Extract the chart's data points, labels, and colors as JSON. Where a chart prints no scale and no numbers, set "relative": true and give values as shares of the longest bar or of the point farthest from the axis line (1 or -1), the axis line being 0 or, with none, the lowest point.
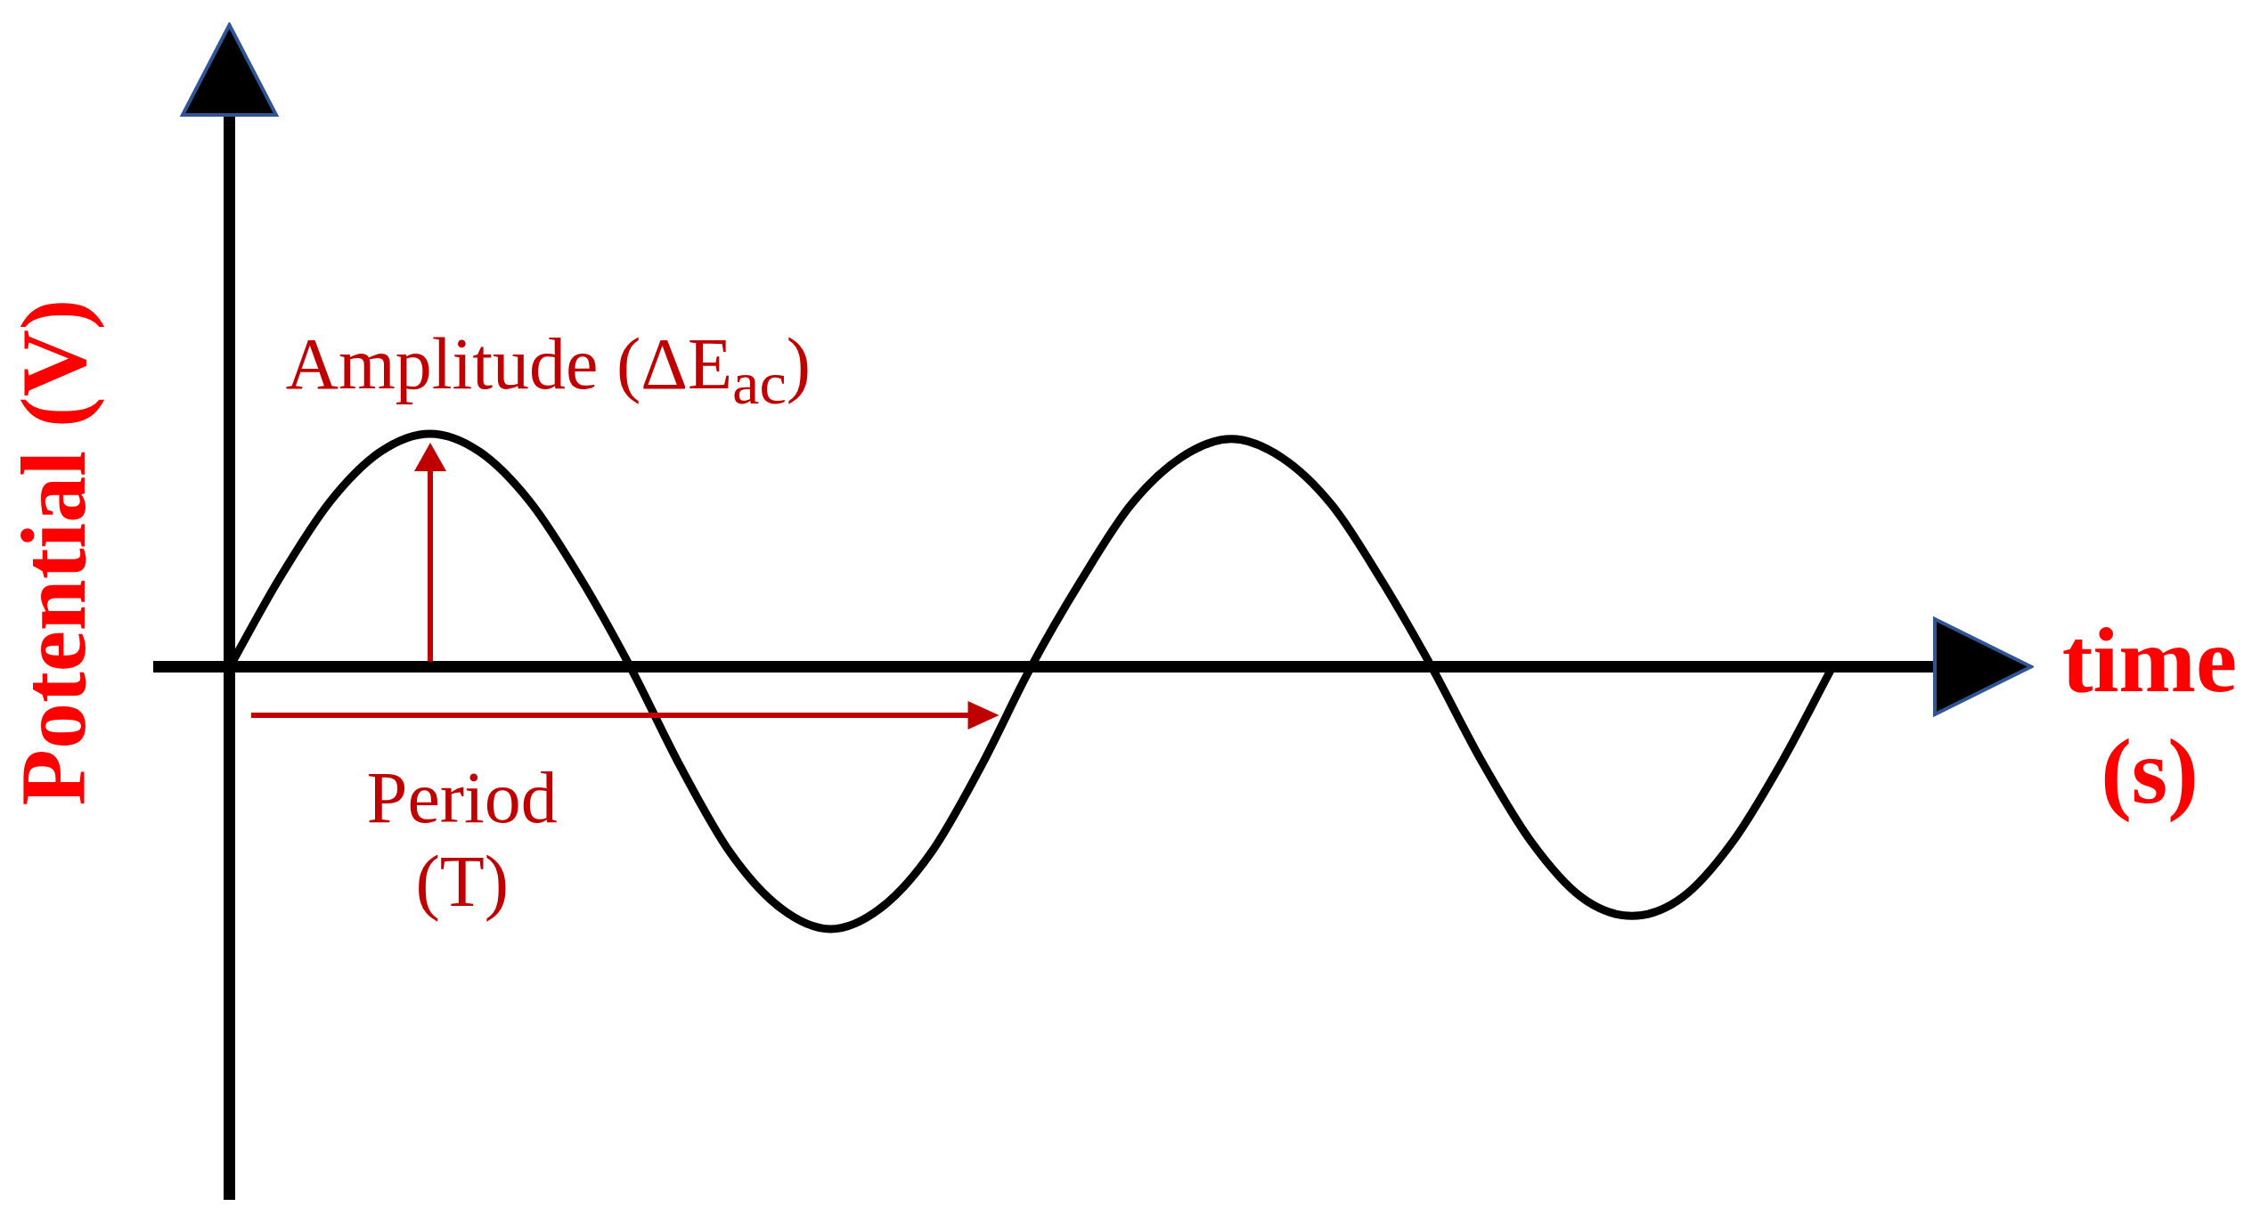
{
  "chart_data": {
    "type": "line",
    "xlabel": "time (s)",
    "ylabel": "Potential (V)",
    "annotations": [
      "Amplitude (ΔE$_{ac}$)",
      "Period (T)"
    ],
    "relative": true,
    "categories": [
      null,
      null,
      null,
      null,
      null,
      null,
      null,
      null,
      null,
      null,
      null,
      null,
      null,
      null,
      null,
      null,
      null,
      null,
      null,
      null,
      null,
      null,
      null,
      null,
      null,
      null,
      null,
      null,
      null,
      null,
      null,
      null,
      null
    ],
    "values": [
      0,
      0.34,
      0.63,
      0.82,
      0.89,
      0.82,
      0.63,
      0.34,
      0,
      -0.38,
      -0.71,
      -0.92,
      -1,
      -0.92,
      -0.71,
      -0.38,
      0,
      0.33,
      0.62,
      0.8,
      0.87,
      0.8,
      0.62,
      0.33,
      0,
      -0.36,
      -0.67,
      -0.88,
      -0.95,
      -0.88,
      -0.67,
      -0.36,
      0
    ],
    "color": "#000000",
    "marker": "none",
    "line_style": "solid"
  }
}
